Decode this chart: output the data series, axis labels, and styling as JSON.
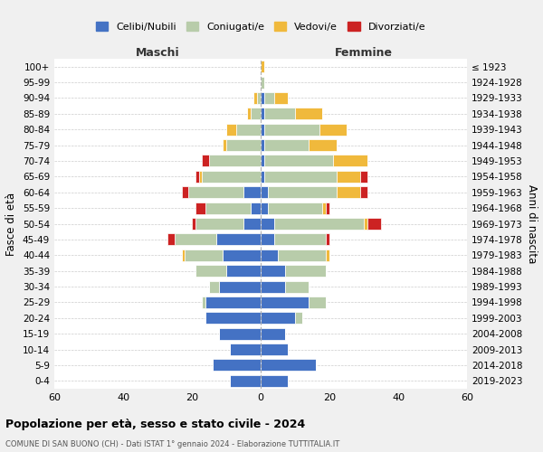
{
  "age_groups": [
    "0-4",
    "5-9",
    "10-14",
    "15-19",
    "20-24",
    "25-29",
    "30-34",
    "35-39",
    "40-44",
    "45-49",
    "50-54",
    "55-59",
    "60-64",
    "65-69",
    "70-74",
    "75-79",
    "80-84",
    "85-89",
    "90-94",
    "95-99",
    "100+"
  ],
  "birth_years": [
    "2019-2023",
    "2014-2018",
    "2009-2013",
    "2004-2008",
    "1999-2003",
    "1994-1998",
    "1989-1993",
    "1984-1988",
    "1979-1983",
    "1974-1978",
    "1969-1973",
    "1964-1968",
    "1959-1963",
    "1954-1958",
    "1949-1953",
    "1944-1948",
    "1939-1943",
    "1934-1938",
    "1929-1933",
    "1924-1928",
    "≤ 1923"
  ],
  "colors": {
    "celibe": "#4472c4",
    "coniugato": "#b8ccaa",
    "vedovo": "#f0b93c",
    "divorziato": "#cc2222"
  },
  "maschi": {
    "celibe": [
      9,
      14,
      9,
      12,
      16,
      16,
      12,
      10,
      11,
      13,
      5,
      3,
      5,
      0,
      0,
      0,
      0,
      0,
      0,
      0,
      0
    ],
    "coniugato": [
      0,
      0,
      0,
      0,
      0,
      1,
      3,
      9,
      11,
      12,
      14,
      13,
      16,
      17,
      15,
      10,
      7,
      3,
      1,
      0,
      0
    ],
    "vedovo": [
      0,
      0,
      0,
      0,
      0,
      0,
      0,
      0,
      1,
      0,
      0,
      0,
      0,
      1,
      0,
      1,
      3,
      1,
      1,
      0,
      0
    ],
    "divorziato": [
      0,
      0,
      0,
      0,
      0,
      0,
      0,
      0,
      0,
      2,
      1,
      3,
      2,
      1,
      2,
      0,
      0,
      0,
      0,
      0,
      0
    ]
  },
  "femmine": {
    "celibe": [
      8,
      16,
      8,
      7,
      10,
      14,
      7,
      7,
      5,
      4,
      4,
      2,
      2,
      1,
      1,
      1,
      1,
      1,
      1,
      0,
      0
    ],
    "coniugato": [
      0,
      0,
      0,
      0,
      2,
      5,
      7,
      12,
      14,
      15,
      26,
      16,
      20,
      21,
      20,
      13,
      16,
      9,
      3,
      1,
      0
    ],
    "vedovo": [
      0,
      0,
      0,
      0,
      0,
      0,
      0,
      0,
      1,
      0,
      1,
      1,
      7,
      7,
      10,
      8,
      8,
      8,
      4,
      0,
      1
    ],
    "divorziato": [
      0,
      0,
      0,
      0,
      0,
      0,
      0,
      0,
      0,
      1,
      4,
      1,
      2,
      2,
      0,
      0,
      0,
      0,
      0,
      0,
      0
    ]
  },
  "xlim": 60,
  "title_main": "Popolazione per età, sesso e stato civile - 2024",
  "title_sub": "COMUNE DI SAN BUONO (CH) - Dati ISTAT 1° gennaio 2024 - Elaborazione TUTTITALIA.IT",
  "xlabel_left": "Maschi",
  "xlabel_right": "Femmine",
  "ylabel_left": "Fasce di età",
  "ylabel_right": "Anni di nascita",
  "legend_labels": [
    "Celibi/Nubili",
    "Coniugati/e",
    "Vedovi/e",
    "Divorziati/e"
  ],
  "bg_color": "#f0f0f0",
  "plot_bg": "#ffffff"
}
